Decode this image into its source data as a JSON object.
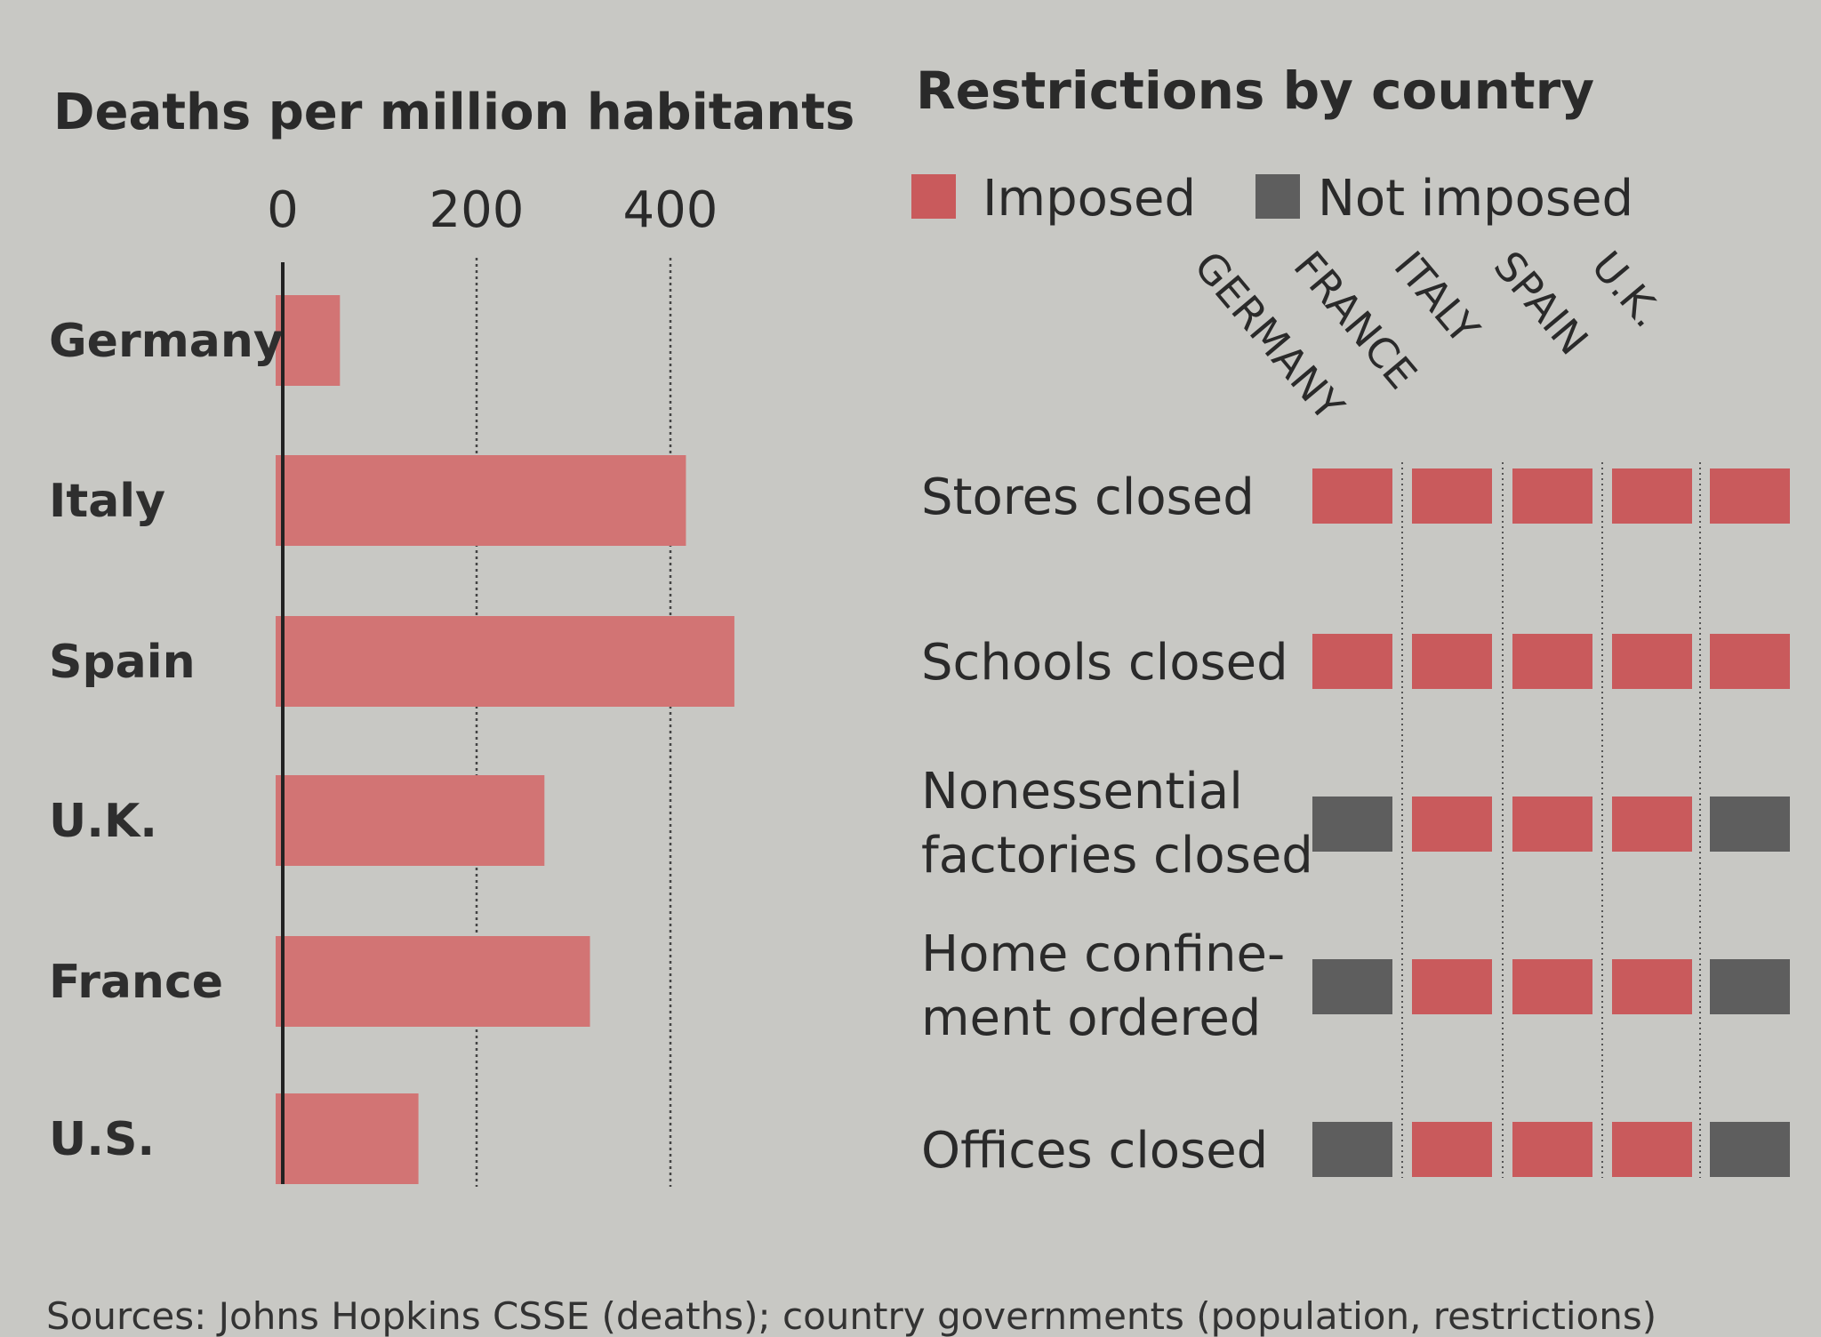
{
  "chart_data": [
    {
      "type": "bar",
      "orientation": "horizontal",
      "title": "Deaths per million habitants",
      "categories": [
        "Germany",
        "Italy",
        "Spain",
        "U.K.",
        "France",
        "U.S."
      ],
      "values": [
        59,
        416,
        466,
        270,
        317,
        140
      ],
      "xticks": [
        "0",
        "200",
        "400"
      ],
      "xtick_values": [
        0,
        200,
        400
      ],
      "xlim": [
        0,
        500
      ],
      "grid": "vertical dotted"
    },
    {
      "type": "table",
      "title": "Restrictions by country",
      "legend": [
        {
          "label": "Imposed",
          "color": "#c95a5c"
        },
        {
          "label": "Not imposed",
          "color": "#5e5e5e"
        }
      ],
      "columns": [
        "GERMANY",
        "FRANCE",
        "ITALY",
        "SPAIN",
        "U.K."
      ],
      "rows": [
        {
          "label": [
            "Stores closed"
          ],
          "values": [
            1,
            1,
            1,
            1,
            1
          ]
        },
        {
          "label": [
            "Schools closed"
          ],
          "values": [
            1,
            1,
            1,
            1,
            1
          ]
        },
        {
          "label": [
            "Nonessential",
            "factories closed"
          ],
          "values": [
            0,
            1,
            1,
            1,
            0
          ]
        },
        {
          "label": [
            "Home confine-",
            "ment ordered"
          ],
          "values": [
            0,
            1,
            1,
            1,
            0
          ]
        },
        {
          "label": [
            "Offices closed"
          ],
          "values": [
            0,
            1,
            1,
            1,
            0
          ]
        }
      ]
    }
  ],
  "source": "Sources: Johns Hopkins CSSE (deaths); country governments (population, restrictions)",
  "colors": {
    "bar": "#d27474",
    "imposed": "#c95a5c",
    "not_imposed": "#5e5e5e",
    "background": "#c8c8c4"
  }
}
